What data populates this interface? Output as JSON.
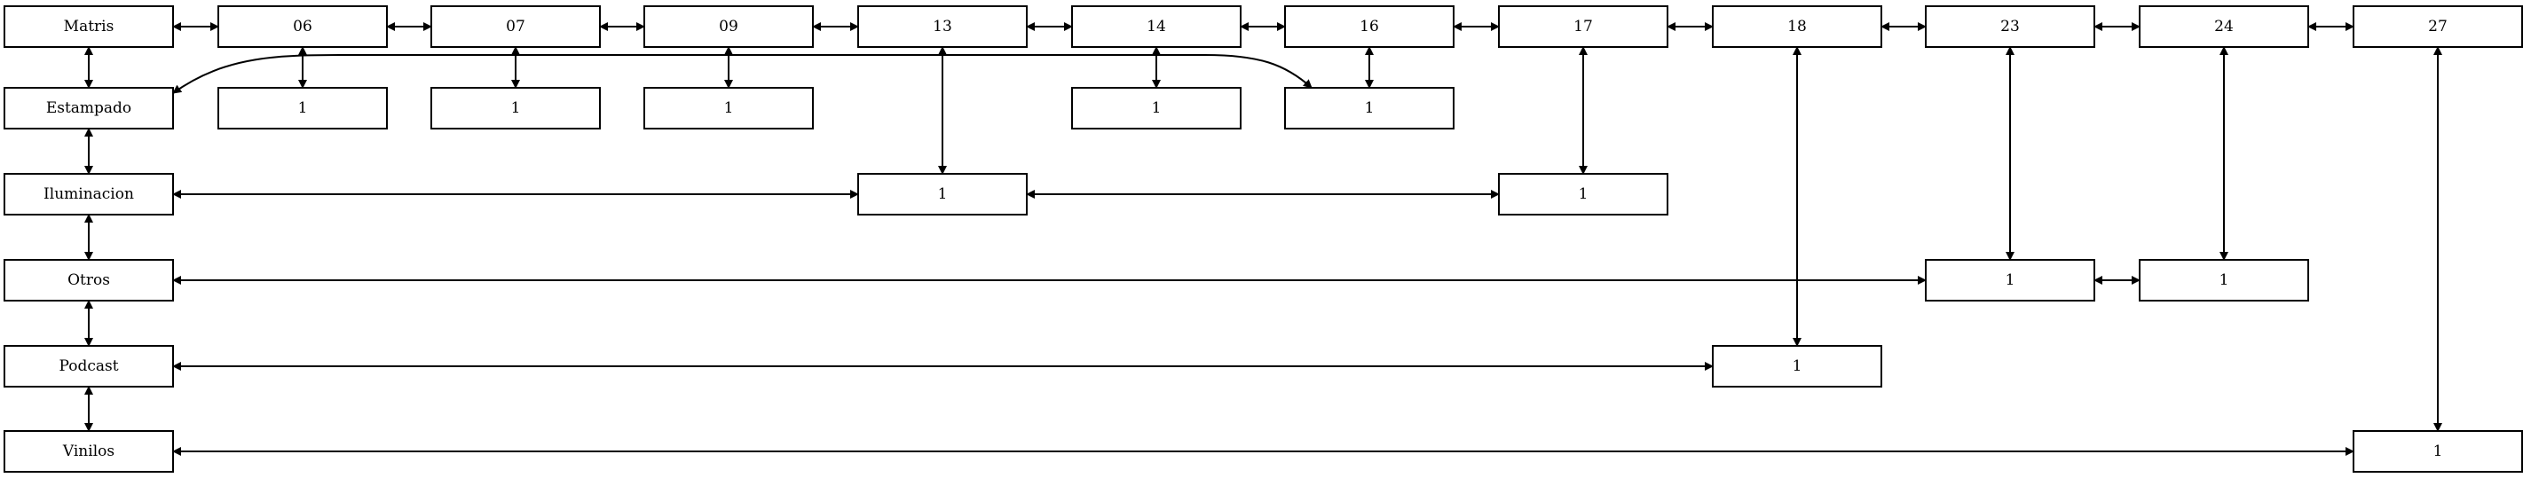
{
  "header_nodes": [
    {
      "id": "matris",
      "label": "Matris"
    },
    {
      "id": "h06",
      "label": "06"
    },
    {
      "id": "h07",
      "label": "07"
    },
    {
      "id": "h09",
      "label": "09"
    },
    {
      "id": "h13",
      "label": "13"
    },
    {
      "id": "h14",
      "label": "14"
    },
    {
      "id": "h16",
      "label": "16"
    },
    {
      "id": "h17",
      "label": "17"
    },
    {
      "id": "h18",
      "label": "18"
    },
    {
      "id": "h23",
      "label": "23"
    },
    {
      "id": "h24",
      "label": "24"
    },
    {
      "id": "h27",
      "label": "27"
    }
  ],
  "row_nodes": [
    {
      "id": "estampado",
      "label": "Estampado"
    },
    {
      "id": "iluminacion",
      "label": "Iluminacion"
    },
    {
      "id": "otros",
      "label": "Otros"
    },
    {
      "id": "podcast",
      "label": "Podcast"
    },
    {
      "id": "vinilos",
      "label": "Vinilos"
    }
  ],
  "cell_nodes": [
    {
      "id": "c_est_06",
      "label": "1"
    },
    {
      "id": "c_est_07",
      "label": "1"
    },
    {
      "id": "c_est_09",
      "label": "1"
    },
    {
      "id": "c_est_14",
      "label": "1"
    },
    {
      "id": "c_est_16",
      "label": "1"
    },
    {
      "id": "c_ilu_13",
      "label": "1"
    },
    {
      "id": "c_ilu_17",
      "label": "1"
    },
    {
      "id": "c_otr_23",
      "label": "1"
    },
    {
      "id": "c_otr_24",
      "label": "1"
    },
    {
      "id": "c_pod_18",
      "label": "1"
    },
    {
      "id": "c_vin_27",
      "label": "1"
    }
  ],
  "edges": [
    {
      "from": "matris",
      "to": "h06"
    },
    {
      "from": "h06",
      "to": "h07"
    },
    {
      "from": "h07",
      "to": "h09"
    },
    {
      "from": "h09",
      "to": "h13"
    },
    {
      "from": "h13",
      "to": "h14"
    },
    {
      "from": "h14",
      "to": "h16"
    },
    {
      "from": "h16",
      "to": "h17"
    },
    {
      "from": "h17",
      "to": "h18"
    },
    {
      "from": "h18",
      "to": "h23"
    },
    {
      "from": "h23",
      "to": "h24"
    },
    {
      "from": "h24",
      "to": "h27"
    },
    {
      "from": "matris",
      "to": "estampado"
    },
    {
      "from": "estampado",
      "to": "iluminacion"
    },
    {
      "from": "iluminacion",
      "to": "otros"
    },
    {
      "from": "otros",
      "to": "podcast"
    },
    {
      "from": "podcast",
      "to": "vinilos"
    },
    {
      "from": "h06",
      "to": "c_est_06"
    },
    {
      "from": "h07",
      "to": "c_est_07"
    },
    {
      "from": "h09",
      "to": "c_est_09"
    },
    {
      "from": "h14",
      "to": "c_est_14"
    },
    {
      "from": "h16",
      "to": "c_est_16"
    },
    {
      "from": "estampado",
      "to": "c_est_16"
    },
    {
      "from": "h13",
      "to": "c_ilu_13"
    },
    {
      "from": "iluminacion",
      "to": "c_ilu_13"
    },
    {
      "from": "c_ilu_13",
      "to": "c_ilu_17"
    },
    {
      "from": "h17",
      "to": "c_ilu_17"
    },
    {
      "from": "h23",
      "to": "c_otr_23"
    },
    {
      "from": "otros",
      "to": "c_otr_23"
    },
    {
      "from": "c_otr_23",
      "to": "c_otr_24"
    },
    {
      "from": "h24",
      "to": "c_otr_24"
    },
    {
      "from": "h18",
      "to": "c_pod_18"
    },
    {
      "from": "podcast",
      "to": "c_pod_18"
    },
    {
      "from": "h27",
      "to": "c_vin_27"
    },
    {
      "from": "vinilos",
      "to": "c_vin_27"
    }
  ]
}
